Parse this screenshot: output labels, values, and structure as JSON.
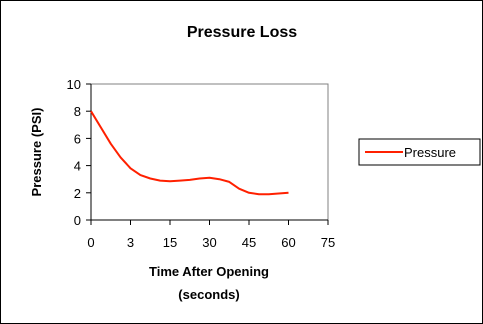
{
  "chart_data": {
    "type": "line",
    "title": "Pressure Loss",
    "xlabel_line1": "Time After Opening",
    "xlabel_line2": "(seconds)",
    "ylabel": "Pressure (PSI)",
    "categories": [
      "0",
      "3",
      "15",
      "30",
      "45",
      "60",
      "75"
    ],
    "ylim": [
      0,
      10
    ],
    "yticks": [
      "0",
      "2",
      "4",
      "6",
      "8",
      "10"
    ],
    "grid": false,
    "legend_position": "right",
    "series": [
      {
        "name": "Pressure",
        "color": "#ff2000",
        "points": [
          [
            0,
            8.0
          ],
          [
            0.5,
            6.8
          ],
          [
            1.0,
            5.6
          ],
          [
            1.5,
            4.6
          ],
          [
            2.0,
            3.8
          ],
          [
            2.5,
            3.3
          ],
          [
            3.0,
            3.05
          ],
          [
            3.5,
            2.9
          ],
          [
            4.0,
            2.85
          ],
          [
            4.5,
            2.9
          ],
          [
            5.0,
            2.95
          ],
          [
            5.5,
            3.05
          ],
          [
            6.0,
            3.1
          ],
          [
            6.5,
            3.0
          ],
          [
            7.0,
            2.8
          ],
          [
            7.5,
            2.3
          ],
          [
            8.0,
            2.0
          ],
          [
            8.5,
            1.9
          ],
          [
            9.0,
            1.9
          ],
          [
            9.5,
            1.95
          ],
          [
            10.0,
            2.0
          ]
        ]
      }
    ]
  }
}
